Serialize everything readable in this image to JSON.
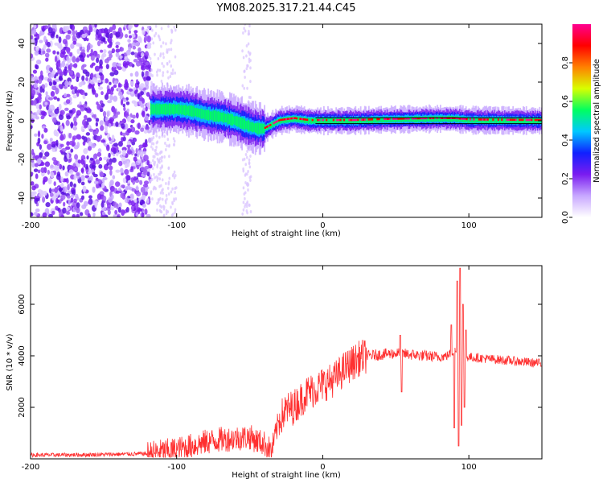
{
  "title": "YM08.2025.317.21.44.C45",
  "chart_data": [
    {
      "type": "heatmap",
      "name": "spectrogram",
      "xlabel": "Height of straight line (km)",
      "ylabel": "Frequency (Hz)",
      "xlim": [
        -200,
        150
      ],
      "ylim": [
        -50,
        50
      ],
      "xticks": [
        -200,
        -100,
        0,
        100
      ],
      "yticks": [
        -40,
        -20,
        0,
        20,
        40
      ],
      "ridge": {
        "x": [
          -115,
          -100,
          -90,
          -80,
          -70,
          -60,
          -50,
          -45,
          -40,
          -35,
          -30,
          -20,
          -10,
          0,
          20,
          40,
          60,
          80,
          90,
          100,
          150
        ],
        "y": [
          6,
          6,
          5,
          3,
          2,
          0,
          -3,
          -4,
          -4,
          -2,
          0,
          1,
          0,
          0,
          0,
          0.5,
          0.8,
          1,
          1,
          0.3,
          0
        ]
      },
      "colorbar": {
        "label": "Normalized spectral amplitude",
        "range": [
          0,
          1
        ],
        "ticks": [
          0.0,
          0.2,
          0.4,
          0.6,
          0.8
        ],
        "tick_labels": [
          "0.0",
          "0.2",
          "0.4",
          "0.6",
          "0.8"
        ],
        "colors": [
          "#ffffff",
          "#c8a8ff",
          "#7a1cf0",
          "#1020ff",
          "#00c8ff",
          "#00ff60",
          "#d8ff00",
          "#ff8000",
          "#ff0000",
          "#ff0090"
        ]
      }
    },
    {
      "type": "line",
      "name": "snr",
      "xlabel": "Height of straight line (km)",
      "ylabel": "SNR (10 * v/v)",
      "xlim": [
        -200,
        150
      ],
      "ylim": [
        0,
        7500
      ],
      "xticks": [
        -200,
        -100,
        0,
        100
      ],
      "yticks": [
        2000,
        4000,
        6000
      ],
      "color": "#ff3030",
      "x": [
        -200,
        -180,
        -160,
        -140,
        -120,
        -100,
        -90,
        -80,
        -70,
        -60,
        -50,
        -45,
        -40,
        -35,
        -30,
        -25,
        -20,
        -15,
        -10,
        -5,
        0,
        5,
        10,
        15,
        20,
        25,
        30,
        40,
        50,
        60,
        70,
        80,
        85,
        90,
        95,
        100,
        110,
        120,
        130,
        140,
        150
      ],
      "y": [
        150,
        150,
        160,
        180,
        200,
        350,
        500,
        650,
        750,
        800,
        850,
        700,
        600,
        300,
        1500,
        1900,
        2000,
        2300,
        2600,
        2700,
        2900,
        3000,
        3200,
        3500,
        3700,
        3900,
        4000,
        4050,
        4100,
        4050,
        4000,
        3950,
        4000,
        4200,
        4000,
        3950,
        3900,
        3850,
        3800,
        3750,
        3700
      ],
      "spikes": [
        {
          "x": 53,
          "y": 4800
        },
        {
          "x": 54,
          "y": 2600
        },
        {
          "x": 88,
          "y": 5200
        },
        {
          "x": 90,
          "y": 1200
        },
        {
          "x": 92,
          "y": 6900
        },
        {
          "x": 93,
          "y": 500
        },
        {
          "x": 94,
          "y": 7400
        },
        {
          "x": 95,
          "y": 1300
        },
        {
          "x": 96,
          "y": 6000
        },
        {
          "x": 97,
          "y": 2000
        },
        {
          "x": 98,
          "y": 5000
        }
      ]
    }
  ]
}
